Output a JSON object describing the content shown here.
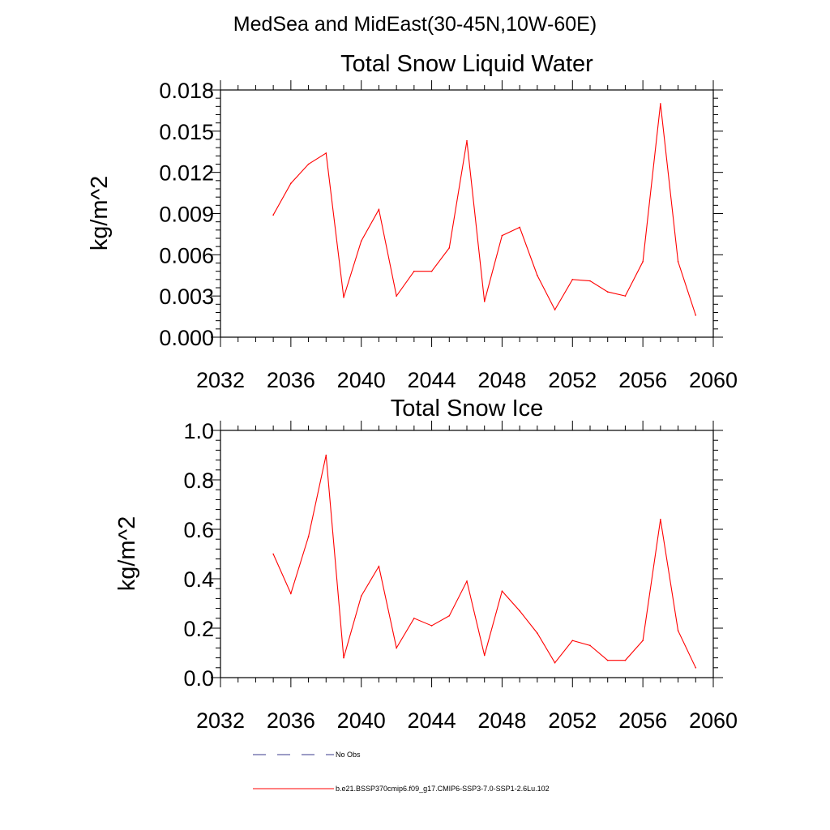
{
  "title": "MedSea and MidEast(30-45N,10W-60E)",
  "chart_data": [
    {
      "type": "line",
      "title": "Total Snow Liquid Water",
      "xlabel": "",
      "ylabel": "kg/m^2",
      "xlim": [
        2032,
        2060
      ],
      "ylim": [
        0,
        0.018
      ],
      "xticks": [
        2032,
        2036,
        2040,
        2044,
        2048,
        2052,
        2056,
        2060
      ],
      "xtick_labels": [
        "2032",
        "2036",
        "2040",
        "2044",
        "2048",
        "2052",
        "2056",
        "2060"
      ],
      "yticks": [
        0,
        0.003,
        0.006,
        0.009,
        0.012,
        0.015,
        0.018
      ],
      "ytick_labels": [
        "0.000",
        "0.003",
        "0.006",
        "0.009",
        "0.012",
        "0.015",
        "0.018"
      ],
      "x": [
        2035,
        2036,
        2037,
        2038,
        2039,
        2040,
        2041,
        2042,
        2043,
        2044,
        2045,
        2046,
        2047,
        2048,
        2049,
        2050,
        2051,
        2052,
        2053,
        2054,
        2055,
        2056,
        2057,
        2058,
        2059
      ],
      "series": [
        {
          "name": "b.e21.BSSP370cmip6.f09_g17.CMIP6-SSP3-7.0-SSP1-2.6Lu.102",
          "color": "#ff0000",
          "values": [
            0.0089,
            0.0112,
            0.0126,
            0.0134,
            0.0029,
            0.007,
            0.0093,
            0.003,
            0.0048,
            0.0048,
            0.0065,
            0.0143,
            0.0026,
            0.0074,
            0.008,
            0.0045,
            0.002,
            0.0042,
            0.0041,
            0.0033,
            0.003,
            0.0055,
            0.017,
            0.0055,
            0.0016
          ]
        }
      ]
    },
    {
      "type": "line",
      "title": "Total Snow Ice",
      "xlabel": "",
      "ylabel": "kg/m^2",
      "xlim": [
        2032,
        2060
      ],
      "ylim": [
        0,
        1.0
      ],
      "xticks": [
        2032,
        2036,
        2040,
        2044,
        2048,
        2052,
        2056,
        2060
      ],
      "xtick_labels": [
        "2032",
        "2036",
        "2040",
        "2044",
        "2048",
        "2052",
        "2056",
        "2060"
      ],
      "yticks": [
        0,
        0.2,
        0.4,
        0.6,
        0.8,
        1.0
      ],
      "ytick_labels": [
        "0.0",
        "0.2",
        "0.4",
        "0.6",
        "0.8",
        "1.0"
      ],
      "x": [
        2035,
        2036,
        2037,
        2038,
        2039,
        2040,
        2041,
        2042,
        2043,
        2044,
        2045,
        2046,
        2047,
        2048,
        2049,
        2050,
        2051,
        2052,
        2053,
        2054,
        2055,
        2056,
        2057,
        2058,
        2059
      ],
      "series": [
        {
          "name": "b.e21.BSSP370cmip6.f09_g17.CMIP6-SSP3-7.0-SSP1-2.6Lu.102",
          "color": "#ff0000",
          "values": [
            0.5,
            0.34,
            0.57,
            0.9,
            0.08,
            0.33,
            0.45,
            0.12,
            0.24,
            0.21,
            0.25,
            0.39,
            0.09,
            0.35,
            0.27,
            0.18,
            0.06,
            0.15,
            0.13,
            0.07,
            0.07,
            0.15,
            0.64,
            0.19,
            0.04
          ]
        }
      ]
    }
  ],
  "legend": [
    {
      "label": "No Obs",
      "color": "#3a3a8c",
      "style": "dashed"
    },
    {
      "label": "b.e21.BSSP370cmip6.f09_g17.CMIP6-SSP3-7.0-SSP1-2.6Lu.102",
      "color": "#ff0000",
      "style": "solid"
    }
  ]
}
